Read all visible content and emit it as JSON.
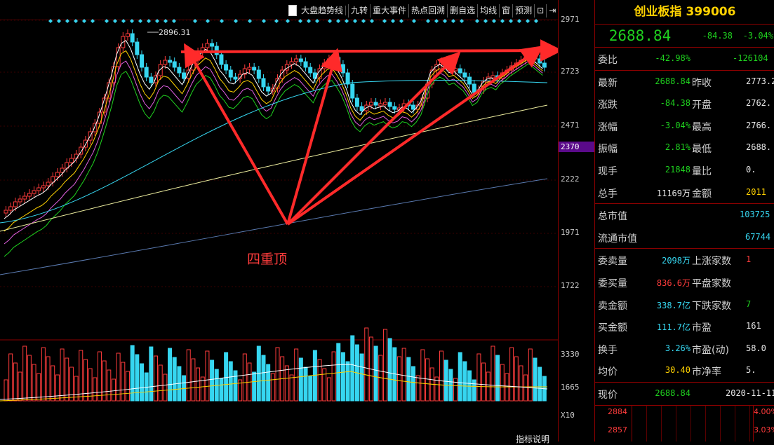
{
  "toolbar": {
    "checkbox_label": "大盘趋势线",
    "items": [
      "九转",
      "重大事件",
      "热点回溯",
      "删自选",
      "均线",
      "窗",
      "预测"
    ]
  },
  "axis": {
    "price_ticks": [
      "2971",
      "2723",
      "2471",
      "2222",
      "1971",
      "1722"
    ],
    "highlight_tick": "2370",
    "volume_ticks": [
      "3330",
      "1665"
    ],
    "volume_unit": "X10"
  },
  "chart": {
    "high_label": "2896.31",
    "pattern_label": "四重顶",
    "bottom_label": "指标说明"
  },
  "panel": {
    "name": "创业板指",
    "code": "399006",
    "price": "2688.84",
    "change": "-84.38",
    "change_pct": "-3.04%",
    "weibi_label": "委比",
    "weibi_value": "-42.98%",
    "weicha_value": "-126104",
    "rows1": [
      {
        "l1": "最新",
        "v1": "2688.84",
        "c1": "green",
        "l2": "昨收",
        "v2": "2773.2",
        "c2": "white"
      },
      {
        "l1": "涨跌",
        "v1": "-84.38",
        "c1": "green",
        "l2": "开盘",
        "v2": "2762.",
        "c2": "white"
      },
      {
        "l1": "涨幅",
        "v1": "-3.04%",
        "c1": "green",
        "l2": "最高",
        "v2": "2766.",
        "c2": "white"
      },
      {
        "l1": "振幅",
        "v1": "2.81%",
        "c1": "green",
        "l2": "最低",
        "v2": "2688.",
        "c2": "white"
      },
      {
        "l1": "现手",
        "v1": "21848",
        "c1": "green",
        "l2": "量比",
        "v2": "0.",
        "c2": "white"
      },
      {
        "l1": "总手",
        "v1": "11169万",
        "c1": "white",
        "l2": "金额",
        "v2": "2011",
        "c2": "yellow"
      }
    ],
    "market_cap_label": "总市值",
    "market_cap_value": "103725",
    "float_cap_label": "流通市值",
    "float_cap_value": "67744",
    "rows2": [
      {
        "l1": "委卖量",
        "v1": "2098万",
        "c1": "cyan",
        "l2": "上涨家数",
        "v2": "1",
        "c2": "red"
      },
      {
        "l1": "委买量",
        "v1": "836.6万",
        "c1": "red",
        "l2": "平盘家数",
        "v2": "",
        "c2": "white"
      },
      {
        "l1": "卖金额",
        "v1": "338.7亿",
        "c1": "cyan",
        "l2": "下跌家数",
        "v2": "7",
        "c2": "green"
      },
      {
        "l1": "买金额",
        "v1": "111.7亿",
        "c1": "cyan",
        "l2": "市盈",
        "v2": "161",
        "c2": "white"
      },
      {
        "l1": "换手",
        "v1": "3.26%",
        "c1": "cyan",
        "l2": "市盈(动)",
        "v2": "58.0",
        "c2": "white"
      },
      {
        "l1": "均价",
        "v1": "30.40",
        "c1": "yellow",
        "l2": "市净率",
        "v2": "5.",
        "c2": "white"
      }
    ],
    "now_label": "现价",
    "now_value": "2688.84",
    "now_date": "2020-11-11,",
    "mini_left_top": "2884",
    "mini_left_bottom": "2857",
    "mini_right_top": "4.00%",
    "mini_right_bottom": "3.03%"
  },
  "colors": {
    "up": "#ff3c3c",
    "down": "#36d6f0",
    "arrow": "#ff2a2a",
    "border": "#8b0000"
  }
}
